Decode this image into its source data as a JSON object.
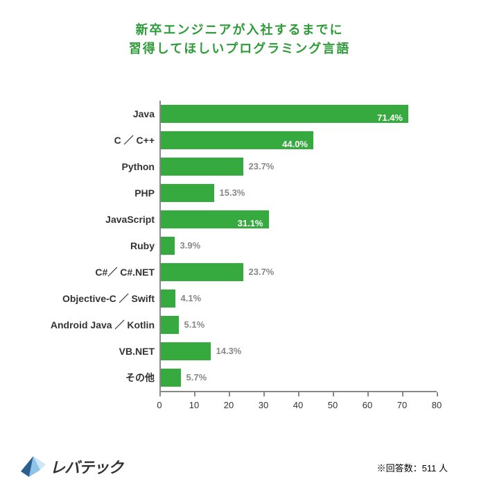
{
  "title_line1": "新卒エンジニアが入社するまでに",
  "title_line2": "習得してほしいプログラミング言語",
  "title_color": "#2e9b3a",
  "title_fontsize": 18,
  "chart": {
    "type": "bar",
    "orientation": "horizontal",
    "bar_color": "#36a93f",
    "axis_color": "#888888",
    "label_color": "#333333",
    "value_inside_color": "#ffffff",
    "value_outside_color": "#888888",
    "xlim": [
      0,
      80
    ],
    "xtick_step": 10,
    "xticks": [
      0,
      10,
      20,
      30,
      40,
      50,
      60,
      70,
      80
    ],
    "label_fontsize": 14,
    "value_fontsize": 13,
    "tick_fontsize": 13,
    "inside_threshold": 25,
    "categories": [
      {
        "label": "Java",
        "value": 71.4,
        "display": "71.4%"
      },
      {
        "label": "C ／ C++",
        "value": 44.0,
        "display": "44.0%"
      },
      {
        "label": "Python",
        "value": 23.7,
        "display": "23.7%"
      },
      {
        "label": "PHP",
        "value": 15.3,
        "display": "15.3%"
      },
      {
        "label": "JavaScript",
        "value": 31.1,
        "display": "31.1%"
      },
      {
        "label": "Ruby",
        "value": 3.9,
        "display": "3.9%"
      },
      {
        "label": "C#／ C#.NET",
        "value": 23.7,
        "display": "23.7%"
      },
      {
        "label": "Objective-C ／ Swift",
        "value": 4.1,
        "display": "4.1%"
      },
      {
        "label": "Android Java ／ Kotlin",
        "value": 5.1,
        "display": "5.1%"
      },
      {
        "label": "VB.NET",
        "value": 14.3,
        "display": "14.3%"
      },
      {
        "label": "その他",
        "value": 5.7,
        "display": "5.7%"
      }
    ]
  },
  "footer_note": "※回答数：511 人",
  "logo_text": "レバテック",
  "logo_text_color": "#333333",
  "logo_mark_colors": [
    "#2b5f8f",
    "#8fc4e8",
    "#cfe6f5"
  ]
}
